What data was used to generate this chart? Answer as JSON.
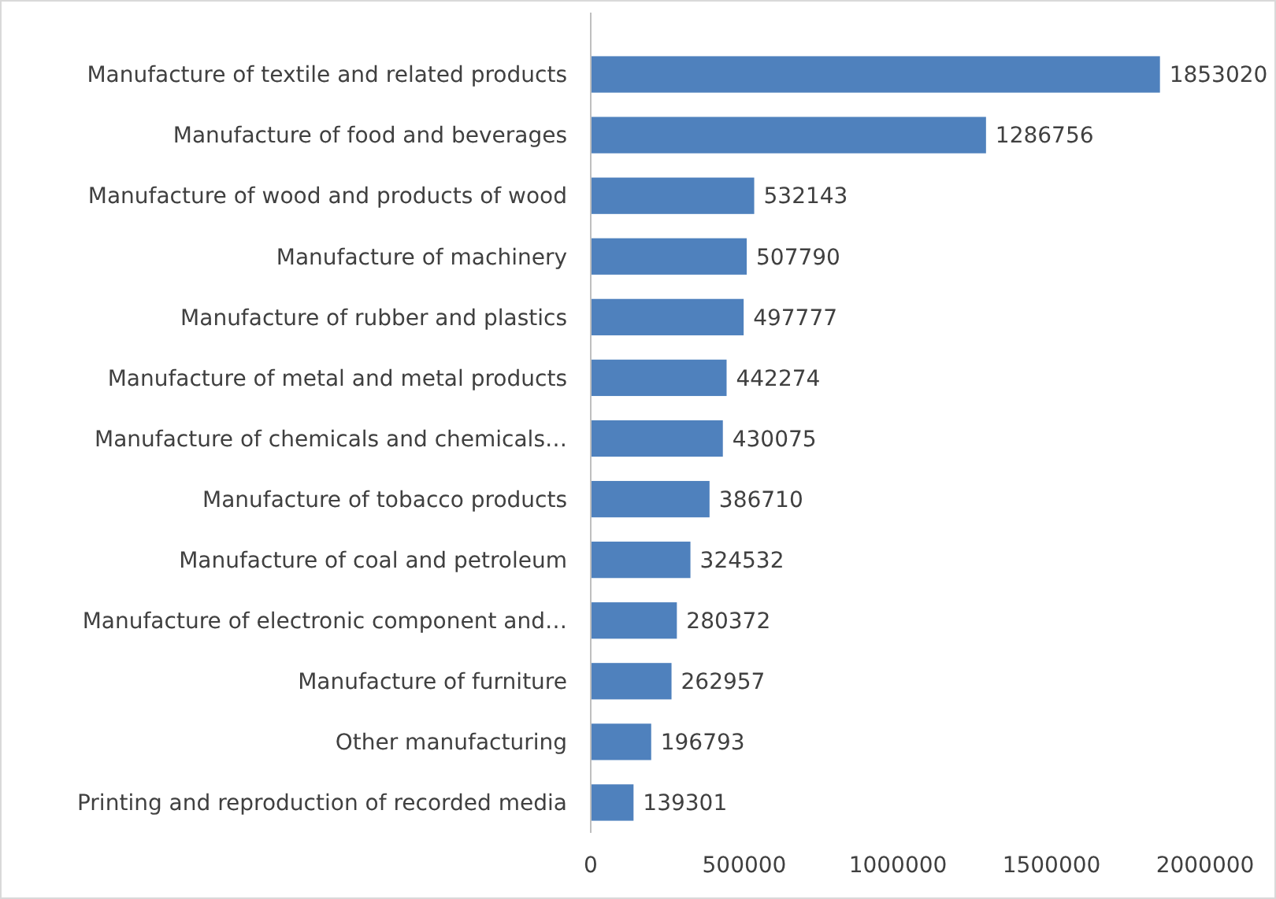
{
  "chart_data": {
    "type": "bar",
    "orientation": "horizontal",
    "categories": [
      "Manufacture of textile and related products",
      "Manufacture of food and beverages",
      "Manufacture of wood and products of wood",
      "Manufacture of machinery",
      "Manufacture of rubber and plastics",
      "Manufacture of metal and metal products",
      "Manufacture of chemicals and chemicals…",
      "Manufacture of tobacco products",
      "Manufacture of coal and petroleum",
      "Manufacture of electronic component and…",
      "Manufacture of furniture",
      "Other manufacturing",
      "Printing and reproduction of recorded media"
    ],
    "values": [
      1853020,
      1286756,
      532143,
      507790,
      497777,
      442274,
      430075,
      386710,
      324532,
      280372,
      262957,
      196793,
      139301
    ],
    "color": "#4f81bd",
    "data_labels": true,
    "grid": false,
    "xlim": [
      0,
      2000000
    ],
    "xticks": [
      0,
      500000,
      1000000,
      1500000,
      2000000
    ]
  }
}
